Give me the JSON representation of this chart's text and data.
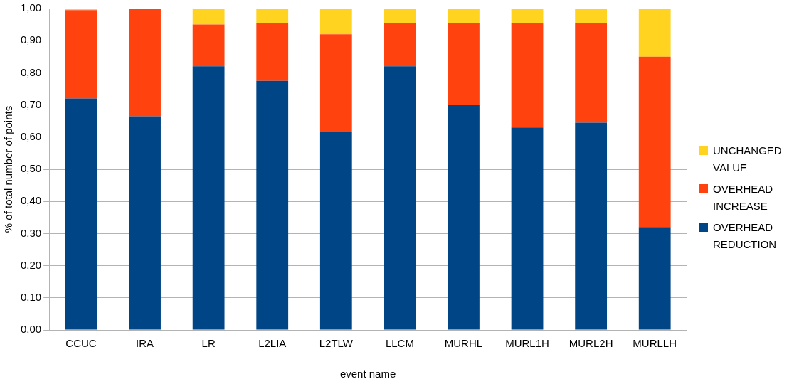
{
  "chart_data": {
    "type": "bar",
    "stacked": true,
    "xlabel": "event name",
    "ylabel": "% of total number of points",
    "categories": [
      "CCUC",
      "IRA",
      "LR",
      "L2LIA",
      "L2TLW",
      "LLCM",
      "MURHL",
      "MURL1H",
      "MURL2H",
      "MURLLH"
    ],
    "series": [
      {
        "name": "OVERHEAD REDUCTION",
        "color": "#004586",
        "values": [
          0.72,
          0.665,
          0.82,
          0.775,
          0.615,
          0.82,
          0.7,
          0.63,
          0.645,
          0.32
        ]
      },
      {
        "name": "OVERHEAD INCREASE",
        "color": "#ff420e",
        "values": [
          0.275,
          0.335,
          0.13,
          0.18,
          0.305,
          0.135,
          0.255,
          0.325,
          0.31,
          0.53
        ]
      },
      {
        "name": "UNCHANGED VALUE",
        "color": "#ffd320",
        "values": [
          0.005,
          0,
          0.05,
          0.045,
          0.08,
          0.045,
          0.045,
          0.045,
          0.045,
          0.15
        ]
      }
    ],
    "ylim": [
      0,
      1
    ],
    "yticks": [
      {
        "value": 0,
        "label": "0,00"
      },
      {
        "value": 0.1,
        "label": "0,10"
      },
      {
        "value": 0.2,
        "label": "0,20"
      },
      {
        "value": 0.3,
        "label": "0,30"
      },
      {
        "value": 0.4,
        "label": "0,40"
      },
      {
        "value": 0.5,
        "label": "0,50"
      },
      {
        "value": 0.6,
        "label": "0,60"
      },
      {
        "value": 0.7,
        "label": "0,70"
      },
      {
        "value": 0.8,
        "label": "0,80"
      },
      {
        "value": 0.9,
        "label": "0,90"
      },
      {
        "value": 1,
        "label": "1,00"
      }
    ],
    "grid": "y",
    "legend": "right"
  }
}
